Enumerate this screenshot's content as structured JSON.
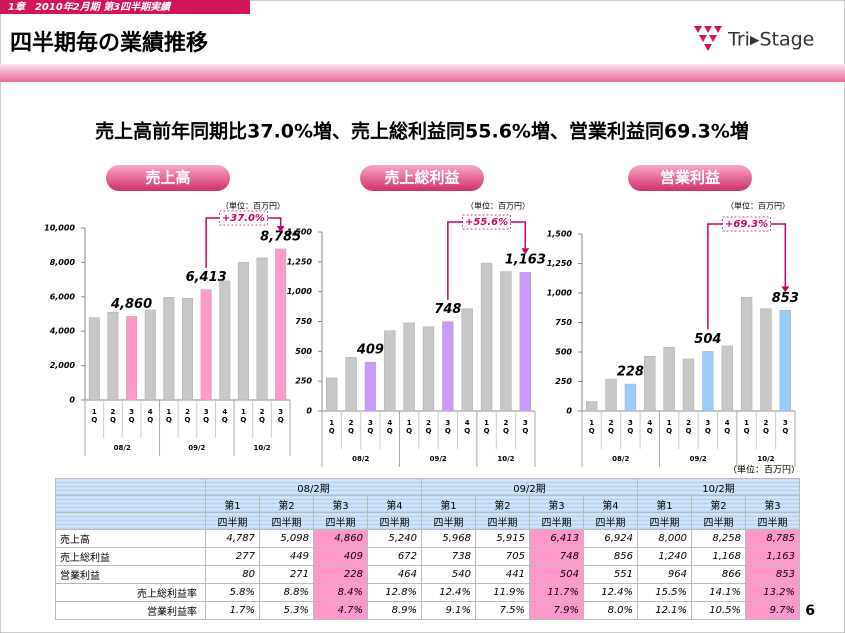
{
  "header": {
    "chapter": "1章　2010年2月期 第3四半期実績",
    "title": "四半期毎の業績推移",
    "logo": "Tri▸Stage",
    "page": "6"
  },
  "headline": "売上高前年同期比37.0%増、売上総利益同55.6%増、営業利益同69.3%増",
  "chart_data": [
    {
      "type": "bar",
      "title": "売上高",
      "unit": "（単位：百万円）",
      "annotation": "+37.0%",
      "groups": [
        "08/2",
        "09/2",
        "10/2"
      ],
      "categories": [
        "1Q",
        "2Q",
        "3Q",
        "4Q",
        "1Q",
        "2Q",
        "3Q",
        "4Q",
        "1Q",
        "2Q",
        "3Q"
      ],
      "values": [
        4787,
        5098,
        4860,
        5240,
        5968,
        5915,
        6413,
        6924,
        8000,
        8258,
        8785
      ],
      "value_labels": [
        null,
        null,
        "4,860",
        null,
        null,
        null,
        "6,413",
        null,
        null,
        null,
        "8,785"
      ],
      "colors": [
        "#c8c8c8",
        "#c8c8c8",
        "#ff99cc",
        "#c8c8c8",
        "#c8c8c8",
        "#c8c8c8",
        "#ff99cc",
        "#c8c8c8",
        "#c8c8c8",
        "#c8c8c8",
        "#ff99cc"
      ],
      "ylim": [
        0,
        10000
      ],
      "yticks": [
        0,
        {
          "value": 2000,
          "label": "2,000"
        },
        {
          "value": 4000,
          "label": "4,000"
        },
        {
          "value": 6000,
          "label": "6,000"
        },
        {
          "value": 8000,
          "label": "8,000"
        },
        {
          "value": 10000,
          "label": "10,000"
        }
      ]
    },
    {
      "type": "bar",
      "title": "売上総利益",
      "unit": "（単位：百万円）",
      "annotation": "+55.6%",
      "groups": [
        "08/2",
        "09/2",
        "10/2"
      ],
      "categories": [
        "1Q",
        "2Q",
        "3Q",
        "4Q",
        "1Q",
        "2Q",
        "3Q",
        "4Q",
        "1Q",
        "2Q",
        "3Q"
      ],
      "values": [
        277,
        449,
        409,
        672,
        738,
        705,
        748,
        856,
        1240,
        1168,
        1163
      ],
      "value_labels": [
        null,
        null,
        "409",
        null,
        null,
        null,
        "748",
        null,
        null,
        null,
        "1,163"
      ],
      "colors": [
        "#c8c8c8",
        "#c8c8c8",
        "#cc99ff",
        "#c8c8c8",
        "#c8c8c8",
        "#c8c8c8",
        "#cc99ff",
        "#c8c8c8",
        "#c8c8c8",
        "#c8c8c8",
        "#cc99ff"
      ],
      "ylim": [
        0,
        1500
      ],
      "yticks": [
        0,
        250,
        500,
        750,
        {
          "value": 1000,
          "label": "1,000"
        },
        {
          "value": 1250,
          "label": "1,250"
        },
        {
          "value": 1500,
          "label": "1,500"
        }
      ]
    },
    {
      "type": "bar",
      "title": "営業利益",
      "unit": "（単位：百万円）",
      "annotation": "+69.3%",
      "groups": [
        "08/2",
        "09/2",
        "10/2"
      ],
      "categories": [
        "1Q",
        "2Q",
        "3Q",
        "4Q",
        "1Q",
        "2Q",
        "3Q",
        "4Q",
        "1Q",
        "2Q",
        "3Q"
      ],
      "values": [
        80,
        271,
        228,
        464,
        540,
        441,
        504,
        551,
        964,
        866,
        853
      ],
      "value_labels": [
        null,
        null,
        "228",
        null,
        null,
        null,
        "504",
        null,
        null,
        null,
        "853"
      ],
      "colors": [
        "#c8c8c8",
        "#c8c8c8",
        "#99ccff",
        "#c8c8c8",
        "#c8c8c8",
        "#c8c8c8",
        "#99ccff",
        "#c8c8c8",
        "#c8c8c8",
        "#c8c8c8",
        "#99ccff"
      ],
      "ylim": [
        0,
        1500
      ],
      "yticks": [
        0,
        250,
        500,
        750,
        {
          "value": 1000,
          "label": "1,000"
        },
        {
          "value": 1250,
          "label": "1,250"
        },
        {
          "value": 1500,
          "label": "1,500"
        }
      ]
    }
  ],
  "table": {
    "unit": "（単位：百万円）",
    "sub_label": "四半期",
    "periods": [
      {
        "label": "08/2期",
        "quarters": [
          "第1",
          "第2",
          "第3",
          "第4"
        ]
      },
      {
        "label": "09/2期",
        "quarters": [
          "第1",
          "第2",
          "第3",
          "第4"
        ]
      },
      {
        "label": "10/2期",
        "quarters": [
          "第1",
          "第2",
          "第3"
        ]
      }
    ],
    "column_colors": [
      null,
      null,
      "#ff99cc",
      null,
      null,
      null,
      "#ff99cc",
      null,
      null,
      null,
      "#ff99cc"
    ],
    "rows": [
      {
        "label": "売上高",
        "values": [
          "4,787",
          "5,098",
          "4,860",
          "5,240",
          "5,968",
          "5,915",
          "6,413",
          "6,924",
          "8,000",
          "8,258",
          "8,785"
        ]
      },
      {
        "label": "売上総利益",
        "values": [
          "277",
          "449",
          "409",
          "672",
          "738",
          "705",
          "748",
          "856",
          "1,240",
          "1,168",
          "1,163"
        ]
      },
      {
        "label": "営業利益",
        "values": [
          "80",
          "271",
          "228",
          "464",
          "540",
          "441",
          "504",
          "551",
          "964",
          "866",
          "853"
        ]
      },
      {
        "label": "売上総利益率",
        "values": [
          "5.8%",
          "8.8%",
          "8.4%",
          "12.8%",
          "12.4%",
          "11.9%",
          "11.7%",
          "12.4%",
          "15.5%",
          "14.1%",
          "13.2%"
        ]
      },
      {
        "label": "営業利益率",
        "values": [
          "1.7%",
          "5.3%",
          "4.7%",
          "8.9%",
          "9.1%",
          "7.5%",
          "7.9%",
          "8.0%",
          "12.1%",
          "10.5%",
          "9.7%"
        ]
      }
    ]
  }
}
